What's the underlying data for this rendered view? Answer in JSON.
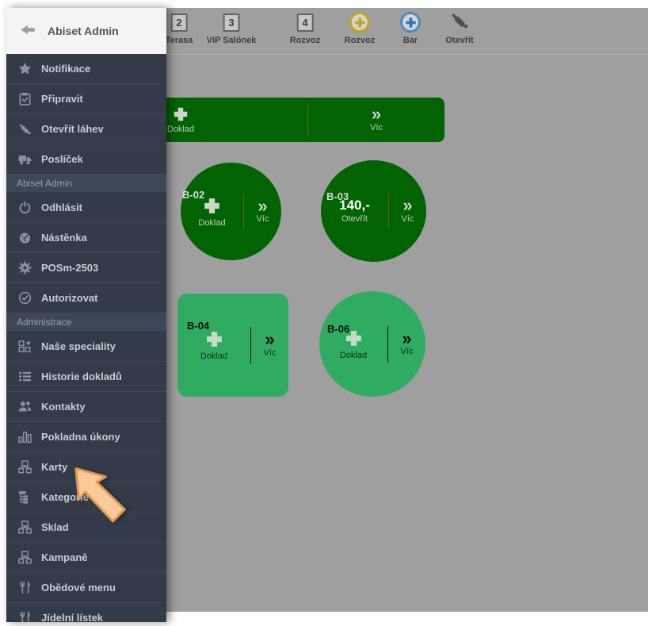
{
  "sidebar": {
    "header": {
      "label": "Abiset Admin",
      "icon": "back-arrow-icon"
    },
    "items": [
      {
        "label": "Notifikace",
        "icon": "star-icon"
      },
      {
        "label": "Připravit",
        "icon": "clipboard-check-icon"
      },
      {
        "label": "Otevřít láhev",
        "icon": "bottle-icon"
      },
      {
        "label": "Poslíček",
        "icon": "truck-icon"
      },
      {
        "label": "Abiset Admin",
        "type": "section"
      },
      {
        "label": "Odhlásit",
        "icon": "power-icon"
      },
      {
        "label": "Nástěnka",
        "icon": "gauge-icon"
      },
      {
        "label": "POSm-2503",
        "icon": "gear-icon"
      },
      {
        "label": "Autorizovat",
        "icon": "check-circle-icon"
      },
      {
        "label": "Administrace",
        "type": "section"
      },
      {
        "label": "Naše speciality",
        "icon": "blocks-star-icon"
      },
      {
        "label": "Historie dokladů",
        "icon": "list-icon"
      },
      {
        "label": "Kontakty",
        "icon": "people-icon"
      },
      {
        "label": "Pokladna úkony",
        "icon": "bar-chart-icon"
      },
      {
        "label": "Karty",
        "icon": "blocks-icon"
      },
      {
        "label": "Kategorie",
        "icon": "tree-icon"
      },
      {
        "label": "Sklad",
        "icon": "blocks-icon"
      },
      {
        "label": "Kampaně",
        "icon": "blocks-icon"
      },
      {
        "label": "Obědové menu",
        "icon": "cutlery-icon"
      },
      {
        "label": "Jídelní lístek",
        "icon": "cutlery-icon"
      }
    ]
  },
  "toolbar": {
    "items": [
      {
        "label": "Terasa",
        "badge": "2",
        "icon": "number-badge"
      },
      {
        "label": "VIP Salónek",
        "badge": "3",
        "icon": "number-badge"
      },
      {
        "label": "Rozvoz",
        "badge": "4",
        "icon": "number-badge"
      },
      {
        "label": "Rozvoz",
        "icon": "plus-circle-yellow-icon"
      },
      {
        "label": "Bar",
        "icon": "plus-circle-blue-icon"
      },
      {
        "label": "Otevřít",
        "icon": "bottle-icon"
      }
    ]
  },
  "tables": {
    "top_bar": {
      "action": "Doklad",
      "more": "Víc"
    },
    "items": [
      {
        "name": "B-02",
        "action": "Doklad",
        "more": "Víc"
      },
      {
        "name": "B-03",
        "amount": "140,-",
        "action": "Otevřít",
        "more": "Víc"
      },
      {
        "name": "B-04",
        "action": "Doklad",
        "more": "Víc"
      },
      {
        "name": "B-06",
        "action": "Doklad",
        "more": "Víc"
      }
    ]
  },
  "glyphs": {
    "chevron": "»",
    "plus": "+"
  },
  "colors": {
    "sidebar_bg": "#333b48",
    "sidebar_section_bg": "#3e4756",
    "sidebar_text": "#c6ccd5",
    "icon_gray": "#8a919c",
    "header_bg": "#f4f4f4",
    "canvas_bg": "#9f9f9f",
    "table_dark_green": "#016301",
    "table_light_green": "#2fab62",
    "divider_orange": "#7d5a05",
    "accent_yellow": "#c2a81c",
    "accent_blue": "#4a8cc2",
    "cursor_orange": "#fbc99a"
  }
}
